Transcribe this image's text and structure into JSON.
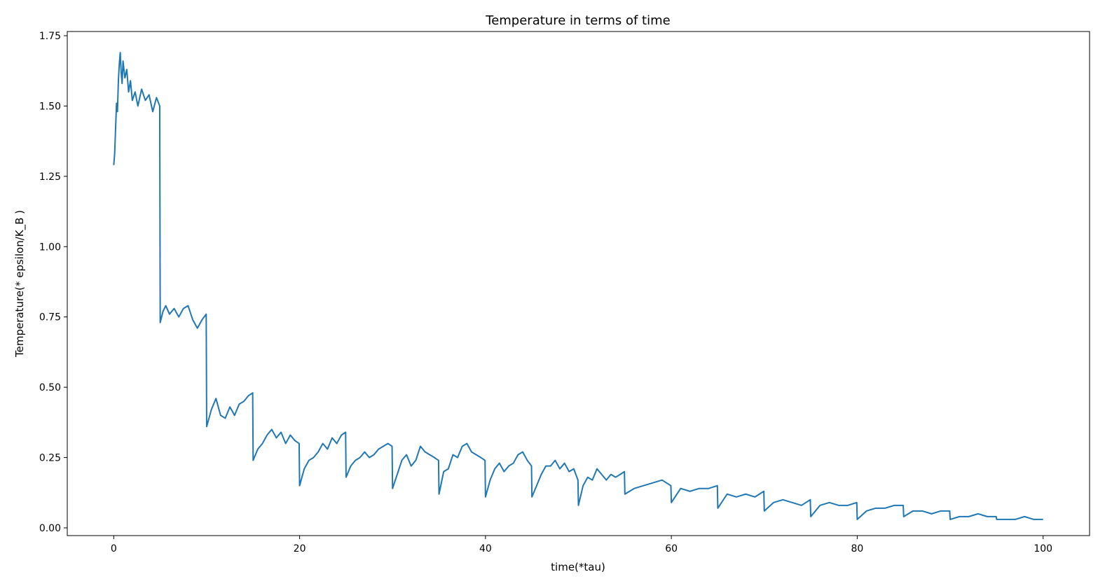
{
  "chart_data": {
    "type": "line",
    "title": "Temperature in terms of time",
    "xlabel": "time(*tau)",
    "ylabel": "Temperature(* epsilon/K_B )",
    "xlim": [
      -5,
      105
    ],
    "ylim": [
      -0.0275,
      1.765
    ],
    "xticks": [
      0,
      20,
      40,
      60,
      80,
      100
    ],
    "xtick_labels": [
      "0",
      "20",
      "40",
      "60",
      "80",
      "100"
    ],
    "yticks": [
      0.0,
      0.25,
      0.5,
      0.75,
      1.0,
      1.25,
      1.5,
      1.75
    ],
    "ytick_labels": [
      "0.00",
      "0.25",
      "0.50",
      "0.75",
      "1.00",
      "1.25",
      "1.50",
      "1.75"
    ],
    "grid": false,
    "legend": "none",
    "series": [
      {
        "color": "#1f77b4",
        "x": [
          0,
          0.1,
          0.2,
          0.3,
          0.4,
          0.5,
          0.6,
          0.7,
          0.8,
          0.9,
          1.0,
          1.2,
          1.4,
          1.6,
          1.8,
          2.0,
          2.3,
          2.6,
          3.0,
          3.4,
          3.8,
          4.2,
          4.6,
          4.95,
          5.0,
          5.3,
          5.6,
          6.0,
          6.5,
          7.0,
          7.5,
          8.0,
          8.5,
          9.0,
          9.5,
          9.95,
          10.0,
          10.5,
          11.0,
          11.5,
          12.0,
          12.5,
          13.0,
          13.5,
          14.0,
          14.5,
          14.95,
          15.0,
          15.5,
          16.0,
          16.5,
          17.0,
          17.5,
          18.0,
          18.5,
          19.0,
          19.5,
          19.95,
          20.0,
          20.5,
          21.0,
          21.5,
          22.0,
          22.5,
          23.0,
          23.5,
          24.0,
          24.5,
          24.95,
          25.0,
          25.5,
          26.0,
          26.5,
          27.0,
          27.5,
          28.0,
          28.5,
          29.0,
          29.5,
          29.95,
          30.0,
          30.5,
          31.0,
          31.5,
          32.0,
          32.5,
          33.0,
          33.5,
          34.0,
          34.5,
          34.95,
          35.0,
          35.5,
          36.0,
          36.5,
          37.0,
          37.5,
          38.0,
          38.5,
          39.0,
          39.5,
          39.95,
          40.0,
          40.5,
          41.0,
          41.5,
          42.0,
          42.5,
          43.0,
          43.5,
          44.0,
          44.5,
          44.95,
          45.0,
          45.5,
          46.0,
          46.5,
          47.0,
          47.5,
          48.0,
          48.5,
          49.0,
          49.5,
          49.95,
          50.0,
          50.5,
          51.0,
          51.5,
          52.0,
          52.5,
          53.0,
          53.5,
          54.0,
          54.5,
          54.95,
          55.0,
          56.0,
          57.0,
          58.0,
          59.0,
          59.95,
          60.0,
          61.0,
          62.0,
          63.0,
          64.0,
          64.95,
          65.0,
          66.0,
          67.0,
          68.0,
          69.0,
          69.95,
          70.0,
          71.0,
          72.0,
          73.0,
          74.0,
          74.95,
          75.0,
          76.0,
          77.0,
          78.0,
          79.0,
          79.95,
          80.0,
          81.0,
          82.0,
          83.0,
          84.0,
          84.95,
          85.0,
          86.0,
          87.0,
          88.0,
          89.0,
          89.95,
          90.0,
          91.0,
          92.0,
          93.0,
          94.0,
          94.95,
          95.0,
          96.0,
          97.0,
          98.0,
          99.0,
          100.0
        ],
        "y": [
          1.29,
          1.33,
          1.42,
          1.51,
          1.48,
          1.59,
          1.65,
          1.69,
          1.62,
          1.58,
          1.66,
          1.6,
          1.63,
          1.55,
          1.59,
          1.52,
          1.55,
          1.5,
          1.56,
          1.52,
          1.54,
          1.48,
          1.53,
          1.5,
          0.73,
          0.77,
          0.79,
          0.76,
          0.78,
          0.75,
          0.78,
          0.79,
          0.74,
          0.71,
          0.74,
          0.76,
          0.36,
          0.42,
          0.46,
          0.4,
          0.39,
          0.43,
          0.4,
          0.44,
          0.45,
          0.47,
          0.48,
          0.24,
          0.28,
          0.3,
          0.33,
          0.35,
          0.32,
          0.34,
          0.3,
          0.33,
          0.31,
          0.3,
          0.15,
          0.21,
          0.24,
          0.25,
          0.27,
          0.3,
          0.28,
          0.32,
          0.3,
          0.33,
          0.34,
          0.18,
          0.22,
          0.24,
          0.25,
          0.27,
          0.25,
          0.26,
          0.28,
          0.29,
          0.3,
          0.29,
          0.14,
          0.19,
          0.24,
          0.26,
          0.22,
          0.24,
          0.29,
          0.27,
          0.26,
          0.25,
          0.24,
          0.12,
          0.2,
          0.21,
          0.26,
          0.25,
          0.29,
          0.3,
          0.27,
          0.26,
          0.25,
          0.24,
          0.11,
          0.17,
          0.21,
          0.23,
          0.2,
          0.22,
          0.23,
          0.26,
          0.27,
          0.24,
          0.22,
          0.11,
          0.15,
          0.19,
          0.22,
          0.22,
          0.24,
          0.21,
          0.23,
          0.2,
          0.21,
          0.17,
          0.08,
          0.15,
          0.18,
          0.17,
          0.21,
          0.19,
          0.17,
          0.19,
          0.18,
          0.19,
          0.2,
          0.12,
          0.14,
          0.15,
          0.16,
          0.17,
          0.15,
          0.09,
          0.14,
          0.13,
          0.14,
          0.14,
          0.15,
          0.07,
          0.12,
          0.11,
          0.12,
          0.11,
          0.13,
          0.06,
          0.09,
          0.1,
          0.09,
          0.08,
          0.1,
          0.04,
          0.08,
          0.09,
          0.08,
          0.08,
          0.09,
          0.03,
          0.06,
          0.07,
          0.07,
          0.08,
          0.08,
          0.04,
          0.06,
          0.06,
          0.05,
          0.06,
          0.06,
          0.03,
          0.04,
          0.04,
          0.05,
          0.04,
          0.04,
          0.03,
          0.03,
          0.03,
          0.04,
          0.03,
          0.03
        ]
      }
    ]
  }
}
